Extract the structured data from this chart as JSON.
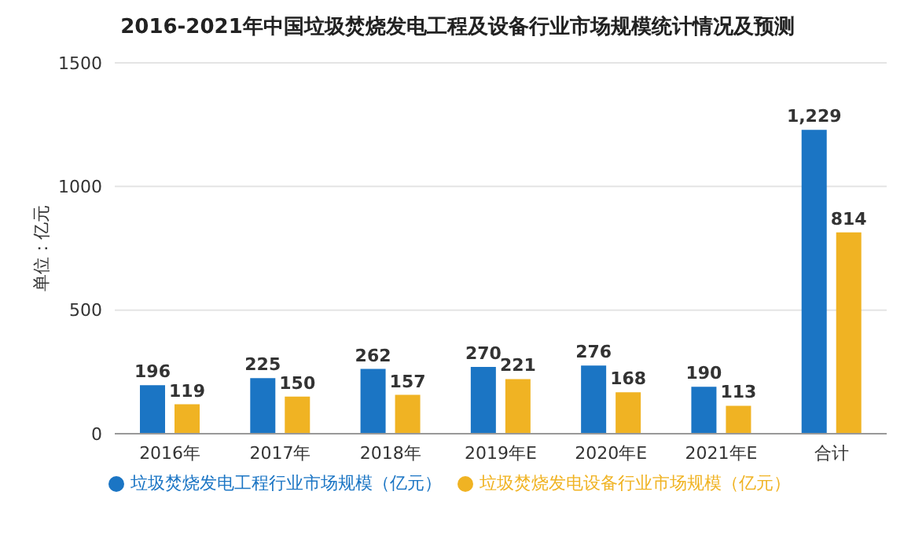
{
  "chart_data": {
    "type": "bar",
    "title": "2016-2021年中国垃圾焚烧发电工程及设备行业市场规模统计情况及预测",
    "ylabel": "单位：亿元",
    "categories": [
      "2016年",
      "2017年",
      "2018年",
      "2019年E",
      "2020年E",
      "2021年E",
      "合计"
    ],
    "series": [
      {
        "name": "垃圾焚烧发电工程行业市场规模（亿元）",
        "color": "#1b75c4",
        "values": [
          196,
          225,
          262,
          270,
          276,
          190,
          1229
        ],
        "value_labels": [
          "196",
          "225",
          "262",
          "270",
          "276",
          "190",
          "1,229"
        ]
      },
      {
        "name": "垃圾焚烧发电设备行业市场规模（亿元）",
        "color": "#f0b323",
        "values": [
          119,
          150,
          157,
          221,
          168,
          113,
          814
        ],
        "value_labels": [
          "119",
          "150",
          "157",
          "221",
          "168",
          "113",
          "814"
        ]
      }
    ],
    "ylim": [
      0,
      1500
    ],
    "yticks": [
      0,
      500,
      1000,
      1500
    ],
    "grid": "y",
    "legend": "bottom"
  }
}
